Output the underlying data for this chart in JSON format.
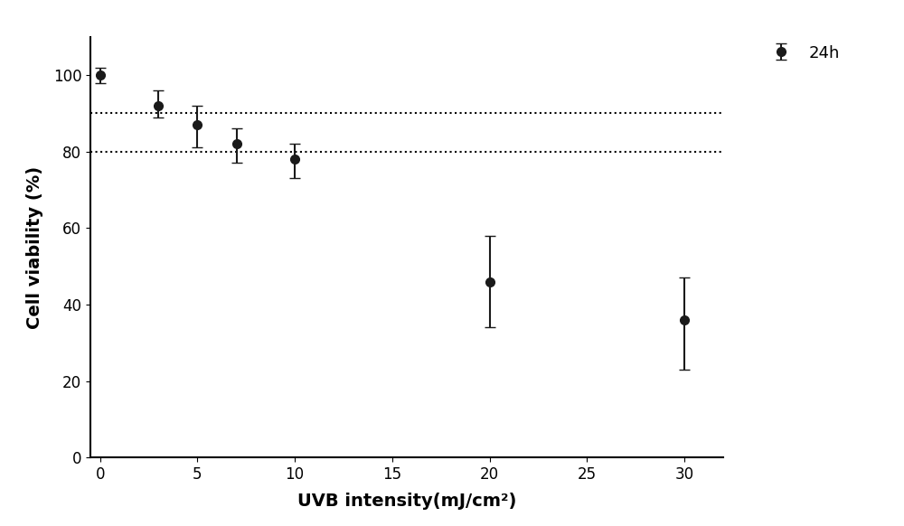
{
  "x": [
    0,
    3,
    5,
    7,
    10,
    20,
    30
  ],
  "y": [
    100,
    92,
    87,
    82,
    78,
    46,
    36
  ],
  "yerr_upper": [
    2,
    4,
    5,
    4,
    4,
    12,
    11
  ],
  "yerr_lower": [
    2,
    3,
    6,
    5,
    5,
    12,
    13
  ],
  "xlabel": "UVB intensity(mJ/cm²)",
  "ylabel": "Cell viability (%)",
  "xlim": [
    -0.5,
    32
  ],
  "ylim": [
    0,
    110
  ],
  "xticks": [
    0,
    5,
    10,
    15,
    20,
    25,
    30
  ],
  "yticks": [
    0,
    20,
    40,
    60,
    80,
    100
  ],
  "hlines": [
    90,
    80
  ],
  "legend_label": "24h",
  "line_color": "#1a1a1a",
  "marker": "o",
  "marker_size": 7,
  "marker_facecolor": "#1a1a1a",
  "linewidth": 2.0,
  "capsize": 4,
  "elinewidth": 1.5,
  "xlabel_fontsize": 14,
  "ylabel_fontsize": 14,
  "tick_fontsize": 12,
  "legend_fontsize": 13,
  "background_color": "#ffffff"
}
